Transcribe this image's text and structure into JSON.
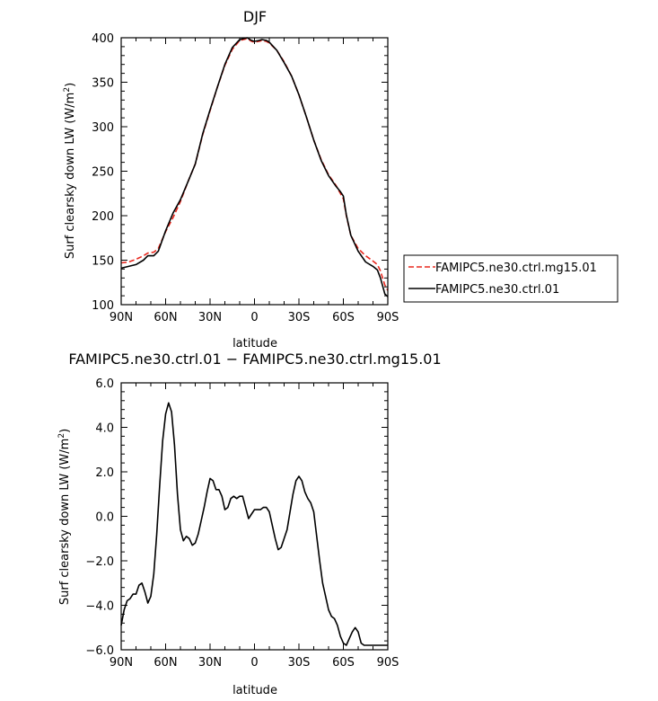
{
  "chart_data": [
    {
      "type": "line",
      "title": "DJF",
      "xlabel": "latitude",
      "ylabel_main": "Surf clearsky down LW (W/m",
      "ylabel_sup": "2",
      "ylabel_close": ")",
      "xlim": [
        90,
        -90
      ],
      "ylim": [
        100,
        400
      ],
      "x_ticks": [
        {
          "v": 90,
          "label": "90N"
        },
        {
          "v": 60,
          "label": "60N"
        },
        {
          "v": 30,
          "label": "30N"
        },
        {
          "v": 0,
          "label": "0"
        },
        {
          "v": -30,
          "label": "30S"
        },
        {
          "v": -60,
          "label": "60S"
        },
        {
          "v": -90,
          "label": "90S"
        }
      ],
      "y_ticks": [
        {
          "v": 100,
          "label": "100"
        },
        {
          "v": 150,
          "label": "150"
        },
        {
          "v": 200,
          "label": "200"
        },
        {
          "v": 250,
          "label": "250"
        },
        {
          "v": 300,
          "label": "300"
        },
        {
          "v": 350,
          "label": "350"
        },
        {
          "v": 400,
          "label": "400"
        }
      ],
      "legend_position": "right",
      "series": [
        {
          "name": "FAMIPC5.ne30.ctrl.mg15.01",
          "color": "#e8281e",
          "dash": "dashed",
          "x": [
            90,
            85,
            80,
            75,
            72,
            68,
            65,
            60,
            55,
            50,
            45,
            40,
            35,
            30,
            25,
            20,
            15,
            10,
            5,
            2,
            0,
            -3,
            -5,
            -8,
            -10,
            -15,
            -20,
            -25,
            -30,
            -35,
            -40,
            -45,
            -50,
            -55,
            -58,
            -60,
            -62,
            -65,
            -70,
            -75,
            -80,
            -83,
            -85,
            -88,
            -90
          ],
          "y": [
            147,
            148,
            151,
            155,
            158,
            159,
            163,
            182,
            198,
            216,
            238,
            258,
            291,
            318,
            345,
            369,
            387,
            397,
            399,
            396,
            395,
            396,
            397,
            396,
            394,
            386,
            373,
            357,
            336,
            311,
            285,
            263,
            246,
            234,
            225,
            219,
            200,
            178,
            163,
            155,
            149,
            145,
            138,
            122,
            116
          ]
        },
        {
          "name": "FAMIPC5.ne30.ctrl.01",
          "color": "#000000",
          "dash": "solid",
          "x": [
            90,
            85,
            80,
            75,
            72,
            68,
            65,
            60,
            55,
            50,
            45,
            40,
            35,
            30,
            25,
            20,
            15,
            10,
            5,
            2,
            0,
            -3,
            -5,
            -8,
            -10,
            -15,
            -20,
            -25,
            -30,
            -35,
            -40,
            -45,
            -50,
            -55,
            -58,
            -60,
            -62,
            -65,
            -70,
            -75,
            -80,
            -83,
            -85,
            -88,
            -90
          ],
          "y": [
            141,
            143,
            145,
            150,
            155,
            155,
            160,
            183,
            203,
            218,
            238,
            258,
            292,
            319,
            345,
            370,
            389,
            398,
            400,
            397,
            396,
            397,
            398,
            397,
            395,
            386,
            372,
            357,
            336,
            311,
            285,
            262,
            245,
            233,
            227,
            222,
            201,
            178,
            160,
            148,
            143,
            139,
            130,
            112,
            109
          ]
        }
      ]
    },
    {
      "type": "line",
      "title": "FAMIPC5.ne30.ctrl.01  −  FAMIPC5.ne30.ctrl.mg15.01",
      "xlabel": "latitude",
      "ylabel_main": "Surf clearsky down LW (W/m",
      "ylabel_sup": "2",
      "ylabel_close": ")",
      "xlim": [
        90,
        -90
      ],
      "ylim": [
        -6,
        6
      ],
      "x_ticks": [
        {
          "v": 90,
          "label": "90N"
        },
        {
          "v": 60,
          "label": "60N"
        },
        {
          "v": 30,
          "label": "30N"
        },
        {
          "v": 0,
          "label": "0"
        },
        {
          "v": -30,
          "label": "30S"
        },
        {
          "v": -60,
          "label": "60S"
        },
        {
          "v": -90,
          "label": "90S"
        }
      ],
      "y_ticks": [
        {
          "v": 6,
          "label": "6.0"
        },
        {
          "v": 4,
          "label": "4.0"
        },
        {
          "v": 2,
          "label": "2.0"
        },
        {
          "v": 0,
          "label": "0.0"
        },
        {
          "v": -2,
          "label": "−2.0"
        },
        {
          "v": -4,
          "label": "−4.0"
        },
        {
          "v": -6,
          "label": "−6.0"
        }
      ],
      "series": [
        {
          "name": "",
          "color": "#000000",
          "dash": "solid",
          "x": [
            90,
            88,
            86,
            84,
            82,
            80,
            78,
            76,
            74,
            72,
            70,
            68,
            66,
            64,
            62,
            60,
            58,
            56,
            54,
            52,
            50,
            48,
            46,
            44,
            42,
            40,
            38,
            36,
            34,
            32,
            30,
            28,
            26,
            24,
            22,
            20,
            18,
            16,
            14,
            12,
            10,
            8,
            6,
            4,
            2,
            0,
            -2,
            -4,
            -6,
            -8,
            -10,
            -12,
            -14,
            -16,
            -18,
            -20,
            -22,
            -24,
            -26,
            -28,
            -30,
            -32,
            -34,
            -36,
            -38,
            -40,
            -42,
            -44,
            -46,
            -48,
            -50,
            -52,
            -54,
            -56,
            -58,
            -60,
            -62,
            -64,
            -66,
            -68,
            -70,
            -72,
            -74,
            -76,
            -78,
            -80,
            -82,
            -84,
            -86,
            -88,
            -90
          ],
          "y": [
            -4.9,
            -4.2,
            -3.8,
            -3.7,
            -3.5,
            -3.5,
            -3.1,
            -3.0,
            -3.4,
            -3.9,
            -3.6,
            -2.6,
            -0.8,
            1.4,
            3.4,
            4.6,
            5.1,
            4.7,
            3.2,
            1.0,
            -0.6,
            -1.1,
            -0.9,
            -1.0,
            -1.3,
            -1.2,
            -0.8,
            -0.2,
            0.4,
            1.1,
            1.7,
            1.6,
            1.2,
            1.2,
            0.9,
            0.3,
            0.4,
            0.8,
            0.9,
            0.8,
            0.9,
            0.9,
            0.4,
            -0.1,
            0.1,
            0.3,
            0.3,
            0.3,
            0.4,
            0.4,
            0.2,
            -0.4,
            -1.0,
            -1.5,
            -1.4,
            -1.0,
            -0.6,
            0.2,
            1.0,
            1.6,
            1.8,
            1.6,
            1.1,
            0.8,
            0.6,
            0.2,
            -0.9,
            -2.0,
            -3.0,
            -3.6,
            -4.2,
            -4.5,
            -4.6,
            -4.9,
            -5.4,
            -5.7,
            -5.8,
            -5.5,
            -5.2,
            -5.0,
            -5.2,
            -5.7,
            -5.8,
            -5.8,
            -5.8,
            -5.8,
            -5.8,
            -5.8,
            -5.8,
            -5.8,
            -5.8
          ]
        }
      ]
    }
  ]
}
